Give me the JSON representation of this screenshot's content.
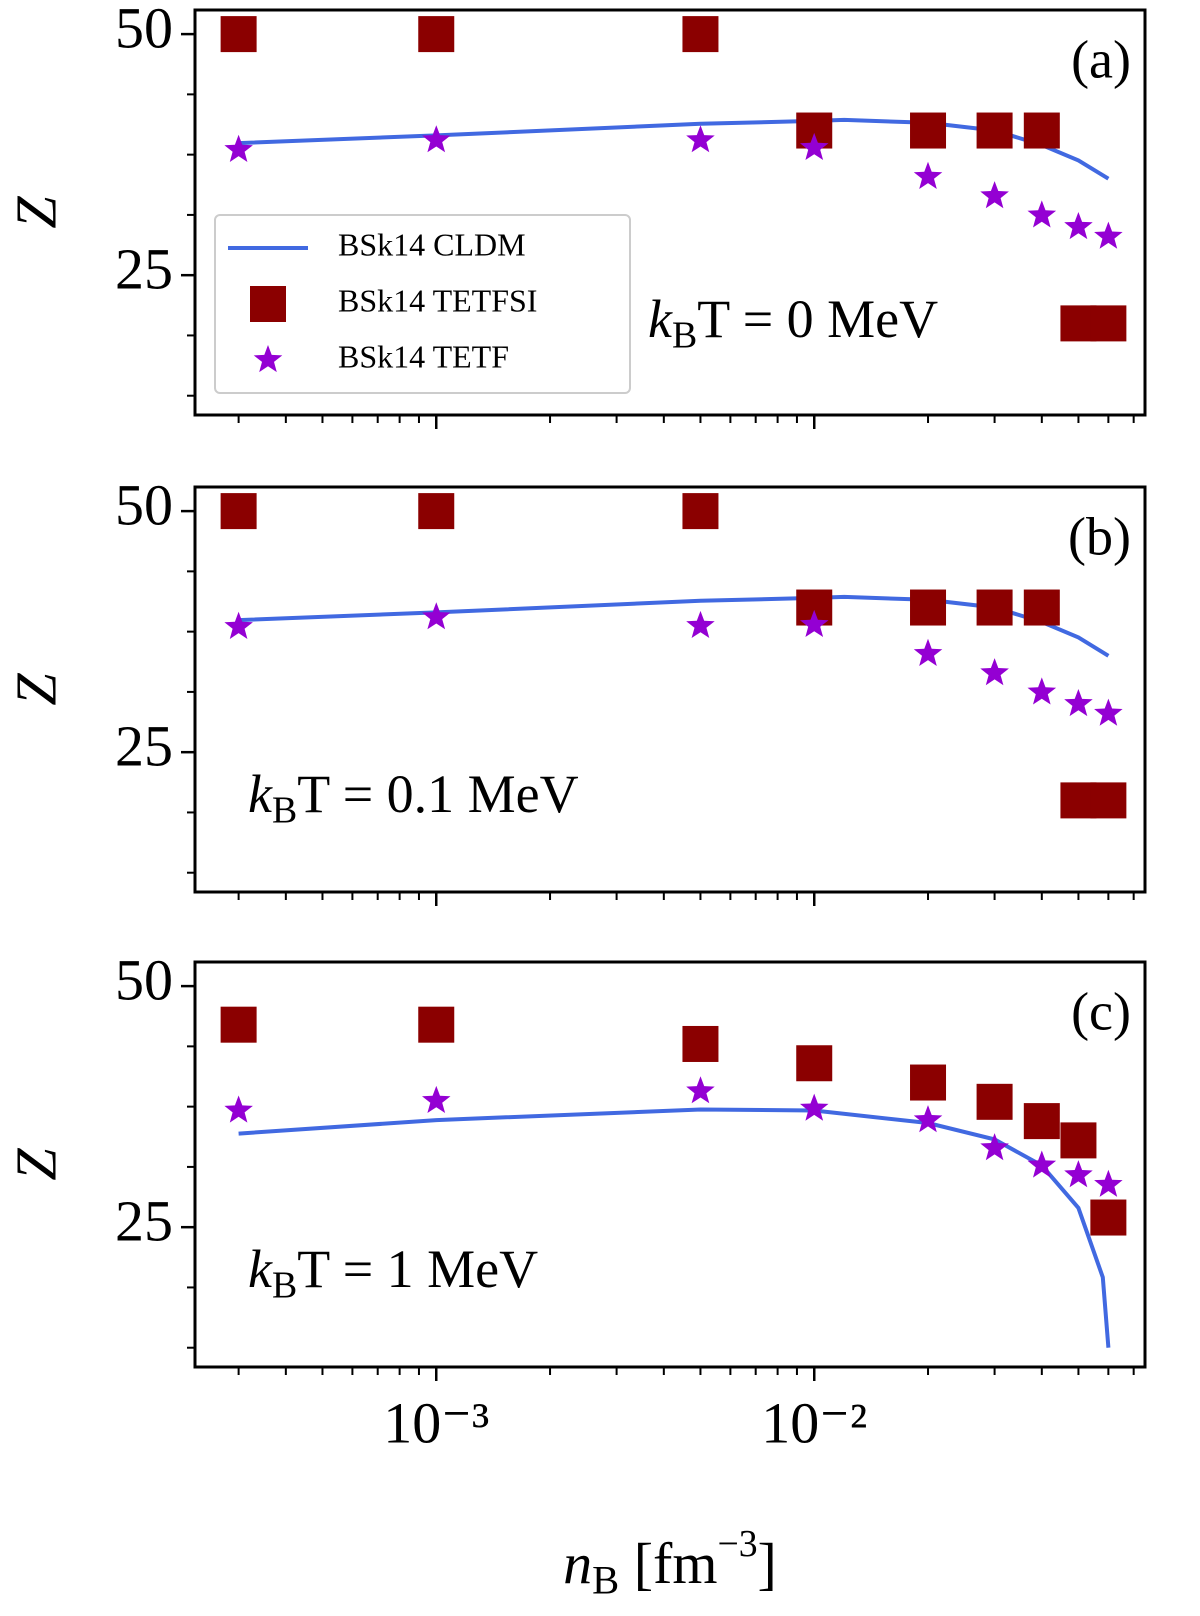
{
  "chart_data": [
    {
      "type": "scatter",
      "panel_label": "(a)",
      "annotation": [
        "k",
        "B",
        "T = 0 MeV"
      ],
      "ylabel": "Z",
      "xlog": true,
      "xlim": [
        0.00023,
        0.075
      ],
      "ylim": [
        10.5,
        52.5
      ],
      "xticks": [
        0.001,
        0.01
      ],
      "xminor": [
        0.0003,
        0.0004,
        0.0005,
        0.0006,
        0.0007,
        0.0008,
        0.0009,
        0.002,
        0.003,
        0.004,
        0.005,
        0.006,
        0.007,
        0.008,
        0.009,
        0.02,
        0.03,
        0.04,
        0.05,
        0.06,
        0.07
      ],
      "yticks": [
        25,
        50
      ],
      "yminor": [
        12.5,
        18.75,
        31.25,
        37.5,
        43.75
      ],
      "legend": "lower left",
      "x": [
        0.0003,
        0.001,
        0.005,
        0.01,
        0.02,
        0.03,
        0.04,
        0.05,
        0.06
      ],
      "series": [
        {
          "name": "BSk14 CLDM",
          "kind": "line",
          "color": "#4169e1",
          "x": [
            0.0003,
            0.001,
            0.005,
            0.01,
            0.012,
            0.02,
            0.03,
            0.04,
            0.05,
            0.06
          ],
          "values": [
            38.7,
            39.5,
            40.7,
            41.0,
            41.1,
            40.8,
            40.0,
            38.5,
            36.9,
            35.0
          ]
        },
        {
          "name": "BSk14 TETFSI",
          "kind": "square",
          "color": "#8b0000",
          "values": [
            50,
            50,
            50,
            40,
            40,
            40,
            40,
            20,
            20
          ]
        },
        {
          "name": "BSk14 TETF",
          "kind": "star",
          "color": "#9400d3",
          "values": [
            38.0,
            39.0,
            39.0,
            38.2,
            35.2,
            33.2,
            31.2,
            30.0,
            29.0
          ]
        }
      ]
    },
    {
      "type": "scatter",
      "panel_label": "(b)",
      "annotation": [
        "k",
        "B",
        "T = 0.1 MeV"
      ],
      "ylabel": "Z",
      "xlog": true,
      "xlim": [
        0.00023,
        0.075
      ],
      "ylim": [
        10.5,
        52.5
      ],
      "xticks": [
        0.001,
        0.01
      ],
      "xminor": [
        0.0003,
        0.0004,
        0.0005,
        0.0006,
        0.0007,
        0.0008,
        0.0009,
        0.002,
        0.003,
        0.004,
        0.005,
        0.006,
        0.007,
        0.008,
        0.009,
        0.02,
        0.03,
        0.04,
        0.05,
        0.06,
        0.07
      ],
      "yticks": [
        25,
        50
      ],
      "yminor": [
        12.5,
        18.75,
        31.25,
        37.5,
        43.75
      ],
      "x": [
        0.0003,
        0.001,
        0.005,
        0.01,
        0.02,
        0.03,
        0.04,
        0.05,
        0.06
      ],
      "series": [
        {
          "kind": "line",
          "color": "#4169e1",
          "x": [
            0.0003,
            0.001,
            0.005,
            0.01,
            0.012,
            0.02,
            0.03,
            0.04,
            0.05,
            0.06
          ],
          "values": [
            38.7,
            39.5,
            40.7,
            41.0,
            41.1,
            40.8,
            40.0,
            38.5,
            36.9,
            35.0
          ]
        },
        {
          "kind": "square",
          "color": "#8b0000",
          "values": [
            50,
            50,
            50,
            40,
            40,
            40,
            40,
            20,
            20
          ]
        },
        {
          "kind": "star",
          "color": "#9400d3",
          "values": [
            38.0,
            39.0,
            38.1,
            38.2,
            35.2,
            33.2,
            31.2,
            30.0,
            29.0
          ]
        }
      ]
    },
    {
      "type": "scatter",
      "panel_label": "(c)",
      "annotation": [
        "k",
        "B",
        "T = 1 MeV"
      ],
      "ylabel": "Z",
      "xlabel": [
        "n",
        "B",
        " [fm",
        "−3",
        "]"
      ],
      "xlog": true,
      "xlim": [
        0.00023,
        0.075
      ],
      "ylim": [
        10.5,
        52.5
      ],
      "xticks": [
        {
          "value": 0.001,
          "label": "10⁻³"
        },
        {
          "value": 0.01,
          "label": "10⁻²"
        }
      ],
      "xminor": [
        0.0003,
        0.0004,
        0.0005,
        0.0006,
        0.0007,
        0.0008,
        0.0009,
        0.002,
        0.003,
        0.004,
        0.005,
        0.006,
        0.007,
        0.008,
        0.009,
        0.02,
        0.03,
        0.04,
        0.05,
        0.06,
        0.07
      ],
      "yticks": [
        25,
        50
      ],
      "yminor": [
        12.5,
        18.75,
        31.25,
        37.5,
        43.75
      ],
      "x": [
        0.0003,
        0.001,
        0.005,
        0.01,
        0.02,
        0.03,
        0.04,
        0.05,
        0.06
      ],
      "series": [
        {
          "kind": "line",
          "color": "#4169e1",
          "x": [
            0.0003,
            0.001,
            0.005,
            0.01,
            0.02,
            0.03,
            0.04,
            0.05,
            0.058,
            0.06
          ],
          "values": [
            34.7,
            36.1,
            37.2,
            37.1,
            35.8,
            34.1,
            31.4,
            27.0,
            19.8,
            12.5
          ]
        },
        {
          "kind": "square",
          "color": "#8b0000",
          "values": [
            46,
            46,
            44,
            42,
            40,
            38,
            36,
            34,
            26
          ]
        },
        {
          "kind": "star",
          "color": "#9400d3",
          "values": [
            37.1,
            38.1,
            39.1,
            37.3,
            36.1,
            33.2,
            31.4,
            30.4,
            29.4
          ]
        }
      ]
    }
  ]
}
